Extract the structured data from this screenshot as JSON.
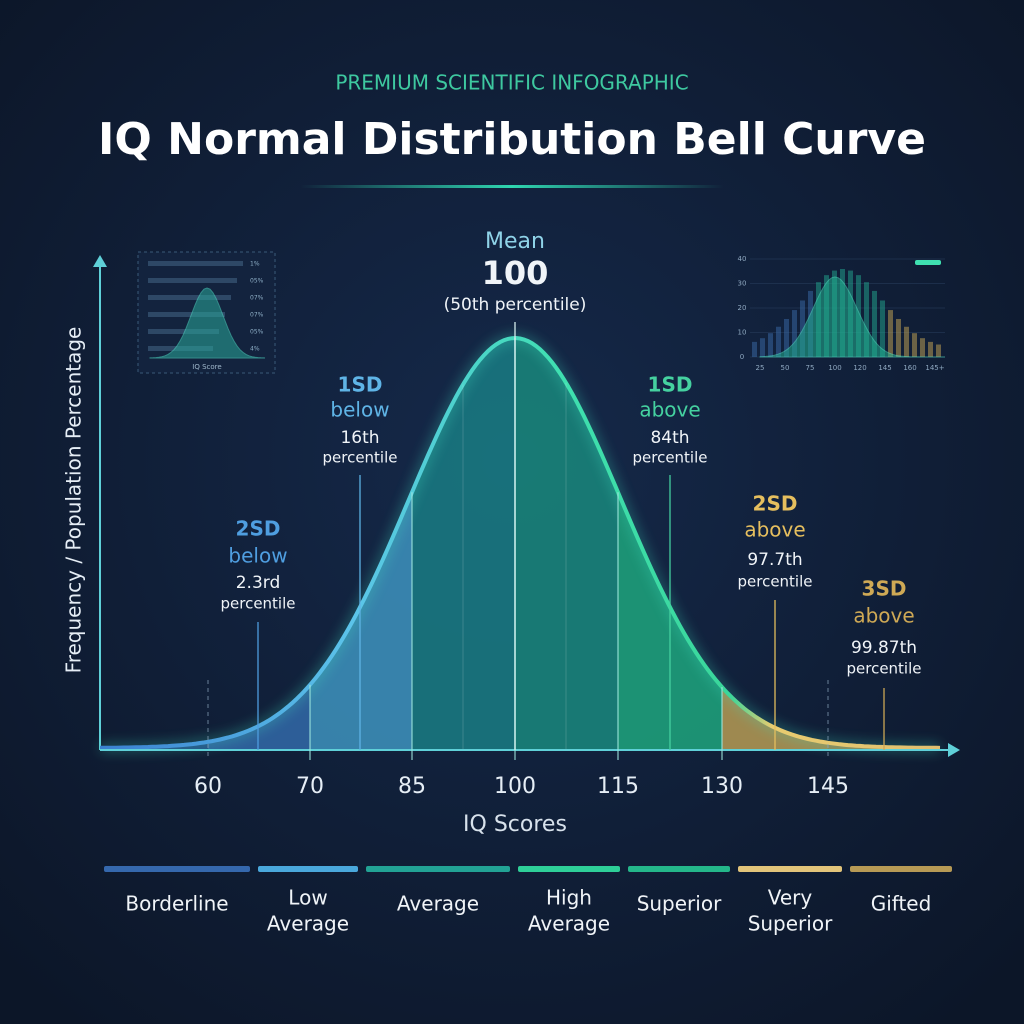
{
  "chart_data": {
    "type": "bell",
    "kicker": "PREMIUM SCIENTIFIC INFOGRAPHIC",
    "title": "IQ Normal Distribution Bell Curve",
    "x_label": "IQ Scores",
    "y_label": "Frequency / Population Percentage",
    "categories": [
      "60",
      "70",
      "85",
      "100",
      "115",
      "130",
      "145"
    ],
    "annotations": [
      {
        "lines": [
          "Mean",
          "100",
          "(50th percentile)"
        ],
        "color": "#8fd3e8"
      },
      {
        "lines": [
          "1SD",
          "below",
          "16th",
          "percentile"
        ],
        "color": "#5fb4e6"
      },
      {
        "lines": [
          "2SD",
          "below",
          "2.3rd",
          "percentile"
        ],
        "color": "#4f9ee0"
      },
      {
        "lines": [
          "1SD",
          "above",
          "84th",
          "percentile"
        ],
        "color": "#45d1a0"
      },
      {
        "lines": [
          "2SD",
          "above",
          "97.7th",
          "percentile"
        ],
        "color": "#e6bf5e"
      },
      {
        "lines": [
          "3SD",
          "above",
          "99.87th",
          "percentile"
        ],
        "color": "#cfa955"
      }
    ],
    "bands": [
      {
        "lines": [
          "Borderline"
        ],
        "color": "#3568ad"
      },
      {
        "lines": [
          "Low",
          "Average"
        ],
        "color": "#4aa8dc"
      },
      {
        "lines": [
          "Average"
        ],
        "color": "#22a395"
      },
      {
        "lines": [
          "High",
          "Average"
        ],
        "color": "#2ecf98"
      },
      {
        "lines": [
          "Superior"
        ],
        "color": "#24b78a"
      },
      {
        "lines": [
          "Very",
          "Superior"
        ],
        "color": "#e2c47a"
      },
      {
        "lines": [
          "Gifted"
        ],
        "color": "#b79a55"
      }
    ],
    "inset_left": {
      "label": "IQ Score",
      "rows": [
        "1%",
        "05%",
        "07%",
        "07%",
        "05%",
        "4%"
      ]
    },
    "inset_right": {
      "categories": [
        "25",
        "50",
        "75",
        "100",
        "120",
        "145",
        "160",
        "145+"
      ],
      "ylim": [
        0,
        40
      ],
      "yticks": [
        0,
        10,
        20,
        30,
        40
      ]
    }
  }
}
